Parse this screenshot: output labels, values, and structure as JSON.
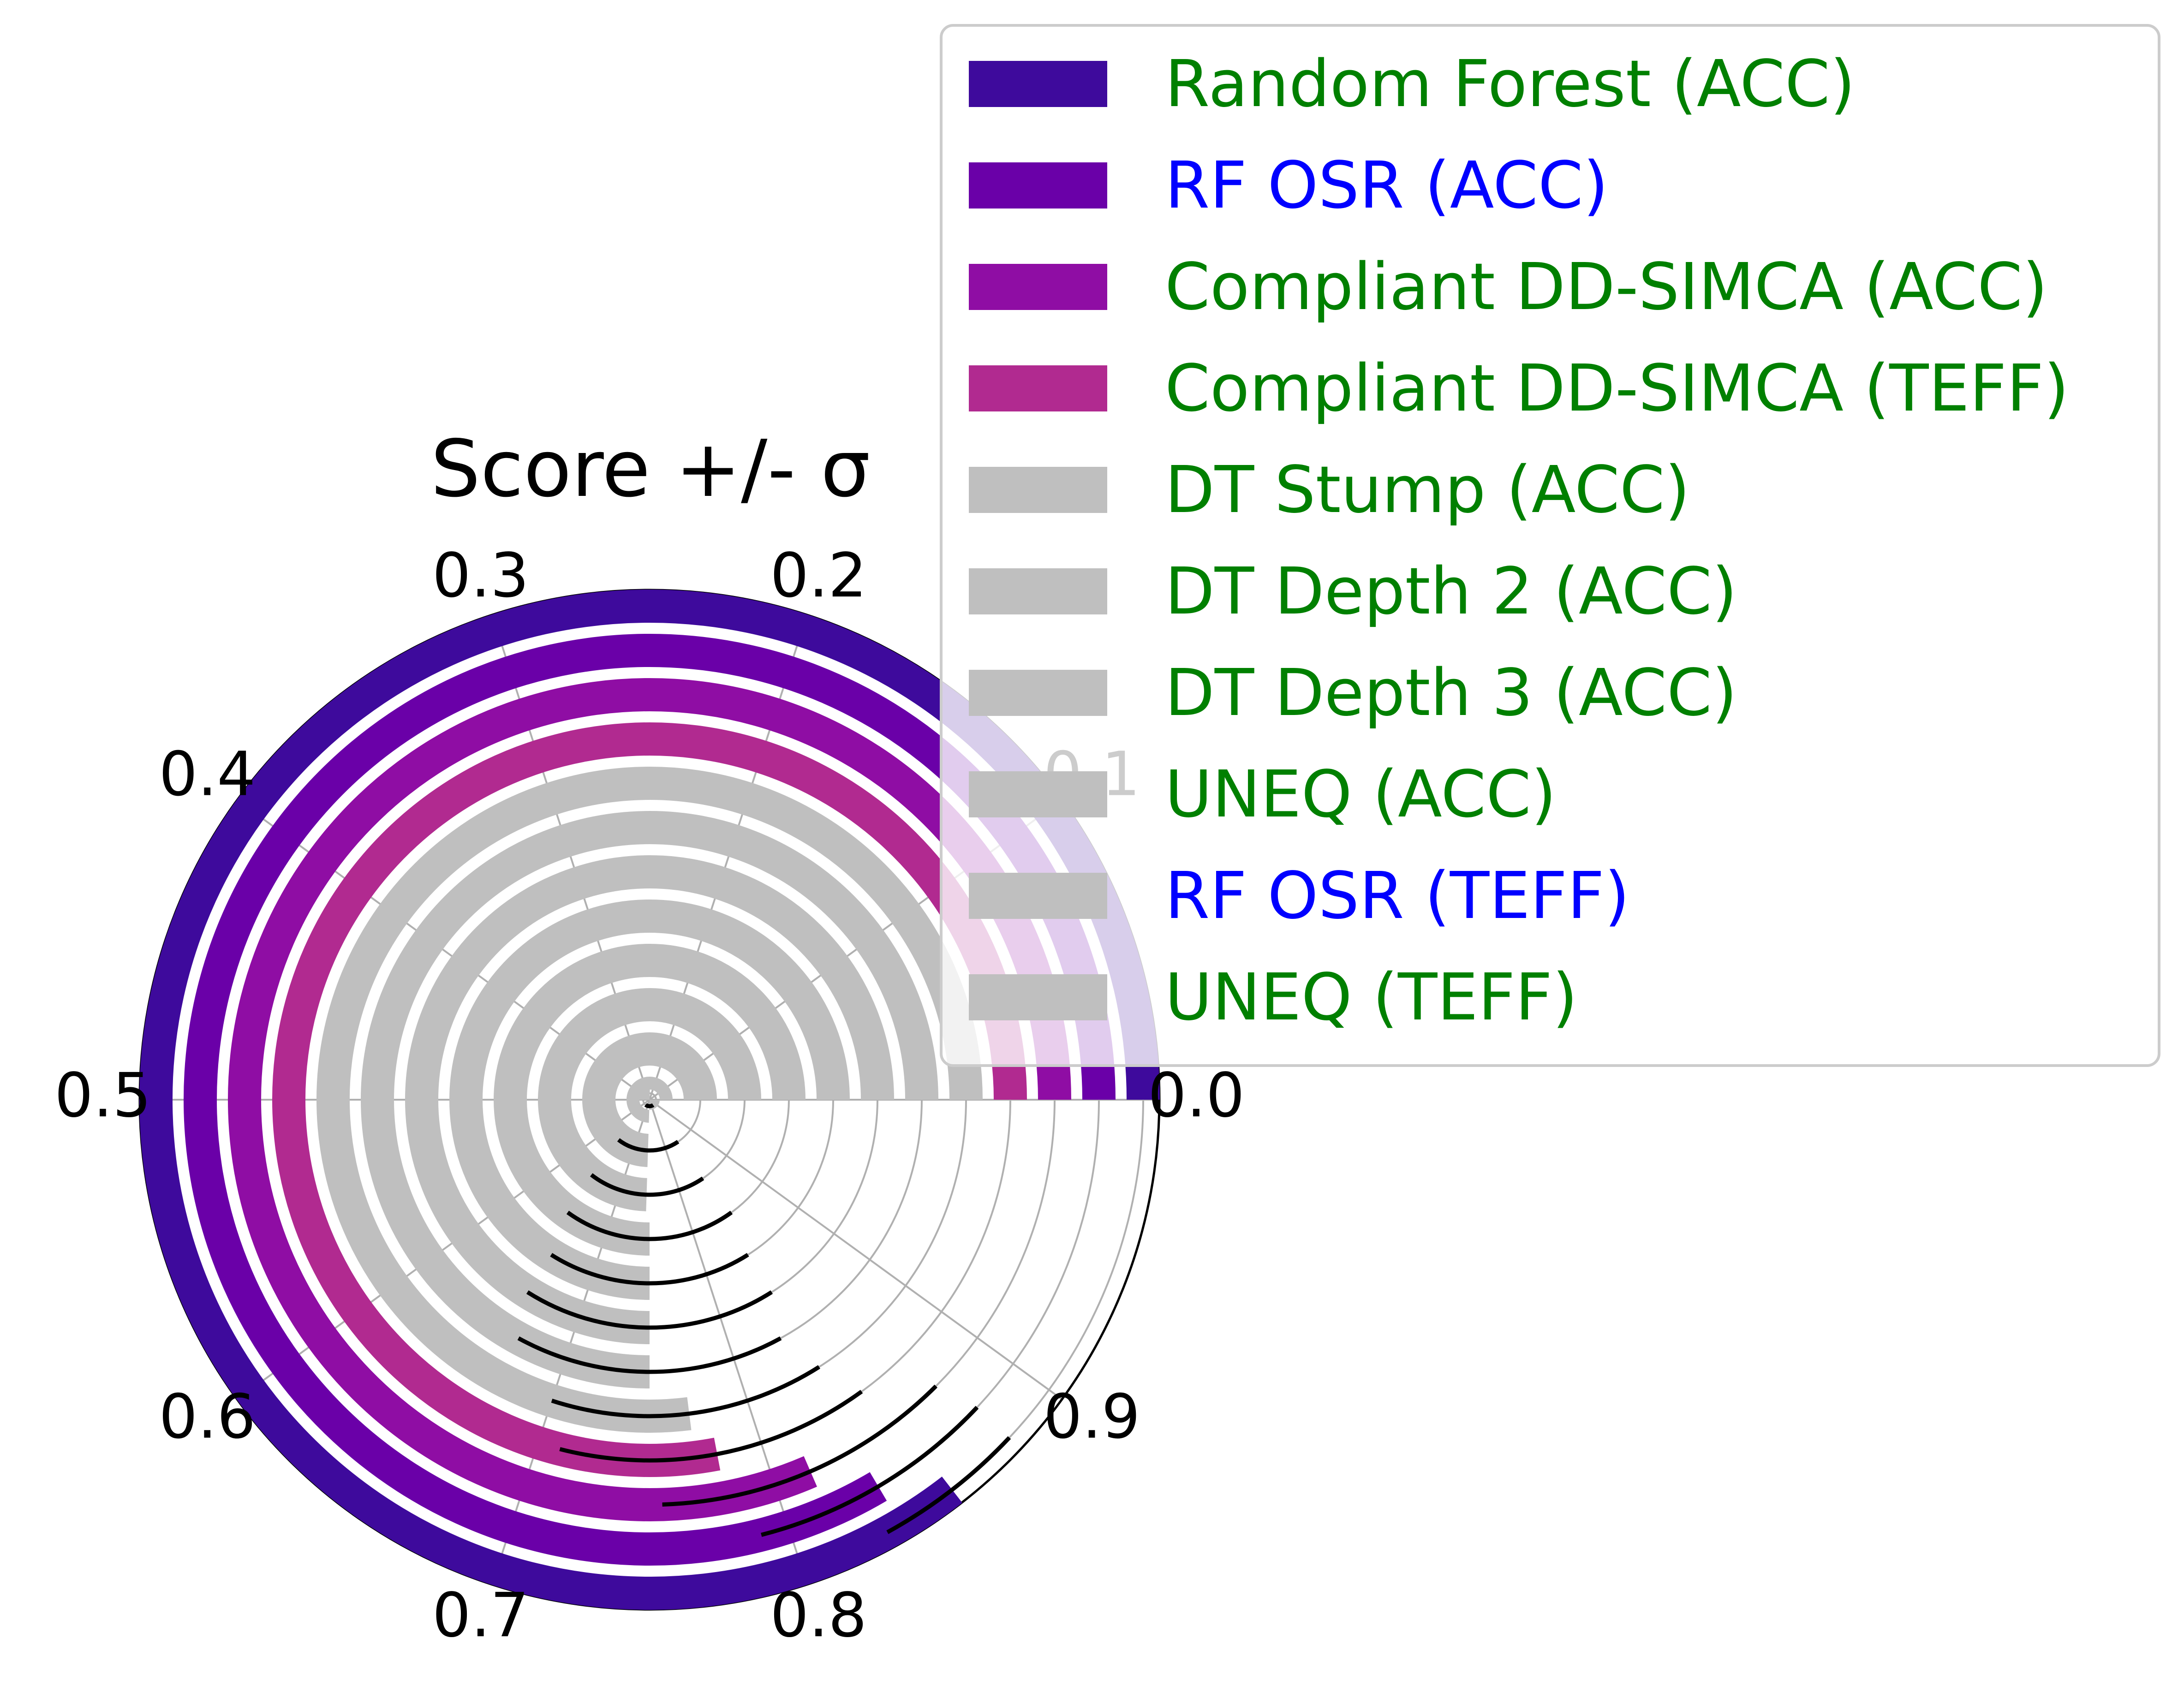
{
  "chart_data": {
    "type": "radial-bar",
    "title": "Score +/- σ",
    "angular_axis": {
      "range": [
        0.0,
        1.0
      ],
      "direction": "counterclockwise",
      "zero_position": "right",
      "ticks": [
        "0.0",
        "0.1",
        "0.2",
        "0.3",
        "0.4",
        "0.5",
        "0.6",
        "0.7",
        "0.8",
        "0.9"
      ]
    },
    "grid": true,
    "legend": {
      "placement": "top-right",
      "entries": [
        {
          "name": "Random Forest (ACC)",
          "text_color": "#008000",
          "swatch_color": "#3e0a9c"
        },
        {
          "name": "RF OSR (ACC)",
          "text_color": "#0000ff",
          "swatch_color": "#6a00a8"
        },
        {
          "name": "Compliant DD-SIMCA (ACC)",
          "text_color": "#008000",
          "swatch_color": "#8f0da4"
        },
        {
          "name": "Compliant DD-SIMCA (TEFF)",
          "text_color": "#008000",
          "swatch_color": "#b12a90"
        },
        {
          "name": "DT Stump (ACC)",
          "text_color": "#008000",
          "swatch_color": "#bfbfbf"
        },
        {
          "name": "DT Depth 2 (ACC)",
          "text_color": "#008000",
          "swatch_color": "#bfbfbf"
        },
        {
          "name": "DT Depth 3 (ACC)",
          "text_color": "#008000",
          "swatch_color": "#bfbfbf"
        },
        {
          "name": "UNEQ (ACC)",
          "text_color": "#008000",
          "swatch_color": "#bfbfbf"
        },
        {
          "name": "RF OSR (TEFF)",
          "text_color": "#0000ff",
          "swatch_color": "#bfbfbf"
        },
        {
          "name": "UNEQ (TEFF)",
          "text_color": "#008000",
          "swatch_color": "#bfbfbf"
        }
      ]
    },
    "series_from_outer_ring": [
      {
        "ring": 1,
        "value": 0.855,
        "sigma": 0.025,
        "color": "#3e0a9c"
      },
      {
        "ring": 2,
        "value": 0.835,
        "sigma": 0.045,
        "color": "#6a00a8"
      },
      {
        "ring": 3,
        "value": 0.815,
        "sigma": 0.06,
        "color": "#8f0da4"
      },
      {
        "ring": 4,
        "value": 0.78,
        "sigma": 0.07,
        "color": "#b12a90"
      },
      {
        "ring": 5,
        "value": 0.77,
        "sigma": 0.07,
        "color": "#bfbfbf"
      },
      {
        "ring": 6,
        "value": 0.75,
        "sigma": 0.08,
        "color": "#bfbfbf"
      },
      {
        "ring": 7,
        "value": 0.75,
        "sigma": 0.09,
        "color": "#bfbfbf"
      },
      {
        "ring": 8,
        "value": 0.75,
        "sigma": 0.09,
        "color": "#bfbfbf"
      },
      {
        "ring": 9,
        "value": 0.75,
        "sigma": 0.1,
        "color": "#bfbfbf"
      },
      {
        "ring": 10,
        "value": 0.745,
        "sigma": 0.1,
        "color": "#bfbfbf"
      },
      {
        "ring": 11,
        "value": 0.745,
        "sigma": 0.1,
        "color": "#bfbfbf"
      },
      {
        "ring": 12,
        "value": 0.745,
        "sigma": 0.1,
        "color": "#bfbfbf"
      }
    ]
  }
}
